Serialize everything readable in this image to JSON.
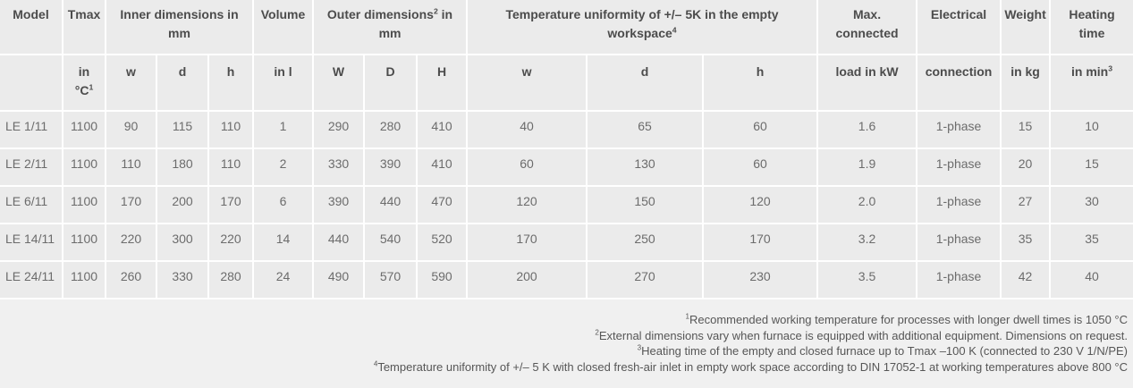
{
  "table": {
    "group": {
      "model": "Model",
      "tmax": "Tmax",
      "inner": "Inner dimensions in\nmm",
      "volume": "Volume",
      "outer_pre": "Outer dimensions",
      "outer_sup": "2",
      "outer_post": " in\nmm",
      "uniformity_pre": "Temperature uniformity of +/– 5K in the empty\nworkspace",
      "uniformity_sup": "4",
      "max_connected": "Max.\nconnected",
      "electrical": "Electrical",
      "weight": "Weight",
      "heating": "Heating\ntime"
    },
    "sub": {
      "tmax_pre": "in\n°C",
      "tmax_sup": "1",
      "w1": "w",
      "d1": "d",
      "h1": "h",
      "volume": "in l",
      "W": "W",
      "D": "D",
      "H": "H",
      "w2": "w",
      "d2": "d",
      "h2": "h",
      "load": "load in kW",
      "connection": "connection",
      "kg": "in kg",
      "min_pre": "in min",
      "min_sup": "3"
    },
    "rows": [
      [
        "LE 1/11",
        "1100",
        "90",
        "115",
        "110",
        "1",
        "290",
        "280",
        "410",
        "40",
        "65",
        "60",
        "1.6",
        "1-phase",
        "15",
        "10"
      ],
      [
        "LE 2/11",
        "1100",
        "110",
        "180",
        "110",
        "2",
        "330",
        "390",
        "410",
        "60",
        "130",
        "60",
        "1.9",
        "1-phase",
        "20",
        "15"
      ],
      [
        "LE 6/11",
        "1100",
        "170",
        "200",
        "170",
        "6",
        "390",
        "440",
        "470",
        "120",
        "150",
        "120",
        "2.0",
        "1-phase",
        "27",
        "30"
      ],
      [
        "LE 14/11",
        "1100",
        "220",
        "300",
        "220",
        "14",
        "440",
        "540",
        "520",
        "170",
        "250",
        "170",
        "3.2",
        "1-phase",
        "35",
        "35"
      ],
      [
        "LE 24/11",
        "1100",
        "260",
        "330",
        "280",
        "24",
        "490",
        "570",
        "590",
        "200",
        "270",
        "230",
        "3.5",
        "1-phase",
        "42",
        "40"
      ]
    ]
  },
  "footnotes": [
    {
      "sup": "1",
      "text": "Recommended working temperature for processes with longer dwell times is 1050 °C"
    },
    {
      "sup": "2",
      "text": "External dimensions vary when furnace is equipped with additional equipment. Dimensions on request."
    },
    {
      "sup": "3",
      "text": "Heating time of the empty and closed furnace up to Tmax –100 K (connected to 230 V 1/N/PE)"
    },
    {
      "sup": "4",
      "text": "Temperature uniformity of +/– 5 K with closed fresh-air inlet in empty work space according to DIN 17052-1 at working temperatures above 800 °C"
    }
  ],
  "colors": {
    "cell_bg": "#ebebeb",
    "gridline": "#ffffff",
    "page_bg": "#f0f0f0",
    "header_text": "#4c4c4c",
    "data_text": "#6c6c6c",
    "footnote_text": "#565656"
  }
}
